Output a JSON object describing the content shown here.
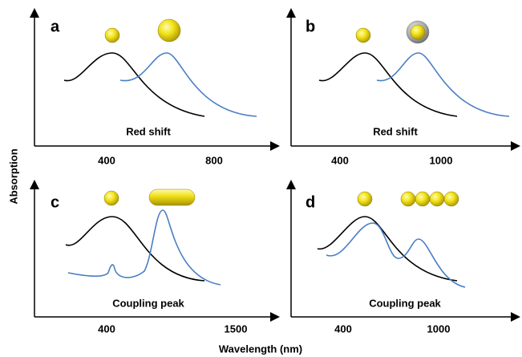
{
  "panels": [
    {
      "label": "a",
      "caption": "Red shift",
      "ticks": [
        "400",
        "800"
      ]
    },
    {
      "label": "b",
      "caption": "Red shift",
      "ticks": [
        "400",
        "1000"
      ]
    },
    {
      "label": "c",
      "caption": "Coupling peak",
      "ticks": [
        "400",
        "1500"
      ]
    },
    {
      "label": "d",
      "caption": "Coupling peak",
      "ticks": [
        "400",
        "1000"
      ]
    }
  ],
  "y_axis_label": "Absorption",
  "x_axis_label": "Wavelength (nm)"
}
